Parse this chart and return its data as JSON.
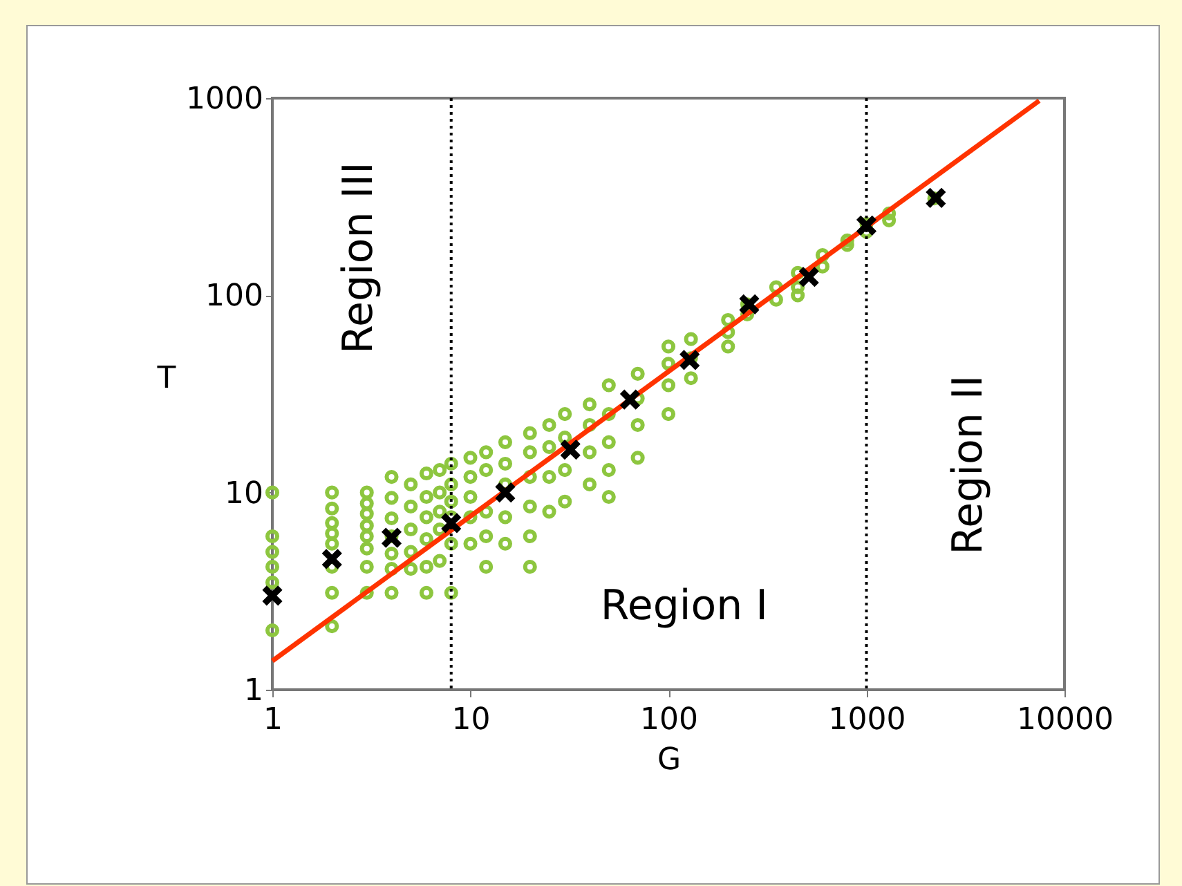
{
  "chart_data": {
    "type": "scatter",
    "xlabel": "G",
    "ylabel": "T",
    "log": "xy",
    "xlim": [
      1,
      10000
    ],
    "ylim": [
      1,
      1000
    ],
    "xticks": [
      1,
      10,
      100,
      1000,
      10000
    ],
    "yticks": [
      1,
      10,
      100,
      1000
    ],
    "grid": false,
    "series": [
      {
        "color": "#8dc63f",
        "marker": "circle",
        "x": [
          1,
          1,
          1,
          1,
          1,
          1,
          2,
          2,
          2,
          2,
          2,
          2,
          2,
          2,
          3,
          3,
          3,
          3,
          3,
          3,
          3,
          3,
          4,
          4,
          4,
          4,
          4,
          4,
          4,
          5,
          5,
          5,
          5,
          5,
          6,
          6,
          6,
          6,
          6,
          6,
          7,
          7,
          7,
          7,
          7,
          8,
          8,
          8,
          8,
          8,
          8,
          10,
          10,
          10,
          10,
          10,
          12,
          12,
          12,
          12,
          12,
          15,
          15,
          15,
          15,
          15,
          20,
          20,
          20,
          20,
          20,
          20,
          25,
          25,
          25,
          25,
          30,
          30,
          30,
          30,
          40,
          40,
          40,
          40,
          50,
          50,
          50,
          50,
          50,
          70,
          70,
          70,
          70,
          100,
          100,
          100,
          100,
          130,
          130,
          130,
          200,
          200,
          200,
          250,
          250,
          350,
          350,
          450,
          450,
          450,
          600,
          600,
          800,
          800,
          1000,
          1000,
          1300,
          1300,
          2200
        ],
        "values": [
          10,
          6,
          5,
          4.2,
          3.5,
          2,
          10,
          8.3,
          7,
          6.2,
          5.5,
          4.2,
          3.1,
          2.1,
          10,
          8.8,
          7.8,
          6.8,
          6,
          5.2,
          4.2,
          3.1,
          12,
          9.4,
          7.4,
          6,
          4.9,
          4.1,
          3.1,
          11,
          8.5,
          6.5,
          5,
          4.1,
          12.5,
          9.5,
          7.5,
          5.8,
          4.2,
          3.1,
          13,
          10,
          8,
          6.5,
          4.5,
          14,
          11,
          9,
          7.5,
          5.5,
          3.1,
          15,
          12,
          9.5,
          7.5,
          5.5,
          16,
          13,
          8,
          6,
          4.2,
          18,
          14,
          11,
          7.5,
          5.5,
          20,
          16,
          12,
          8.5,
          6,
          4.2,
          22,
          17,
          12,
          8,
          25,
          19,
          13,
          9,
          28,
          22,
          16,
          11,
          35,
          25,
          18,
          13,
          9.5,
          40,
          30,
          22,
          15,
          55,
          45,
          35,
          25,
          60,
          48,
          38,
          75,
          65,
          55,
          90,
          80,
          110,
          95,
          130,
          110,
          100,
          160,
          140,
          190,
          180,
          230,
          210,
          260,
          240,
          310
        ]
      },
      {
        "color": "#000000",
        "marker": "cross",
        "x": [
          1,
          2,
          4,
          8,
          15,
          32,
          64,
          128,
          256,
          512,
          1000,
          2240
        ],
        "values": [
          3,
          4.6,
          5.9,
          7,
          10,
          16.5,
          29.6,
          47,
          90,
          124,
          226,
          312
        ]
      },
      {
        "type": "line",
        "color": "#ff3300",
        "line_style": "solid",
        "x": [
          1,
          7450
        ],
        "values": [
          1.4,
          970
        ]
      }
    ],
    "ref_lines": [
      {
        "axis": "x",
        "value": 8,
        "color": "#000000",
        "line_style": "dotted"
      },
      {
        "axis": "x",
        "value": 1000,
        "color": "#000000",
        "line_style": "dotted"
      }
    ],
    "annotations": [
      "Region III",
      "Region I",
      "Region II"
    ]
  }
}
